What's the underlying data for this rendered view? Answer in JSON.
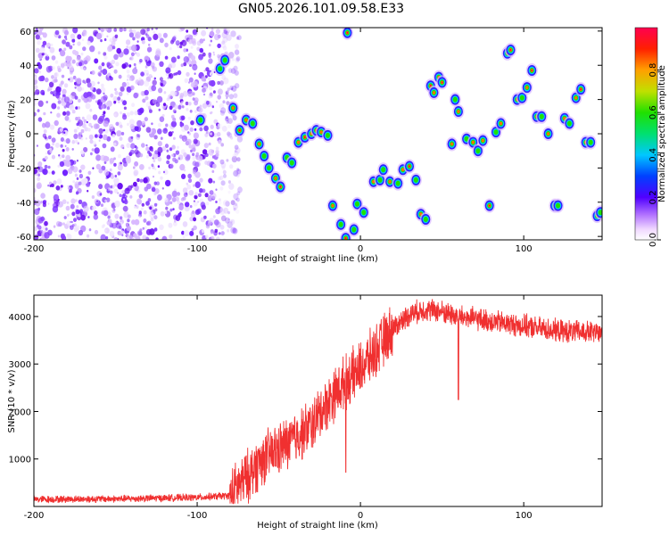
{
  "title": "GN05.2026.101.09.58.E33",
  "chart_data": [
    {
      "type": "heatmap",
      "name": "spectrogram",
      "xlabel": "Height of straight line (km)",
      "ylabel": "Frequency (Hz)",
      "xlim": [
        -200,
        148
      ],
      "ylim": [
        -62,
        62
      ],
      "xticks": [
        -200,
        -100,
        0,
        100
      ],
      "yticks": [
        -60,
        -40,
        -20,
        0,
        20,
        40,
        60
      ],
      "colorbar": {
        "label": "Normalized spectral amplitude",
        "range": [
          0,
          1
        ],
        "ticks": [
          0.0,
          0.2,
          0.4,
          0.6,
          0.8
        ]
      },
      "noise_region": {
        "x_from": -200,
        "x_to": -78,
        "y_from": -62,
        "y_to": 62
      },
      "blobs": [
        {
          "x": -98,
          "y": 8,
          "a": 0.35
        },
        {
          "x": -86,
          "y": 38,
          "a": 0.45
        },
        {
          "x": -83,
          "y": 43,
          "a": 0.5
        },
        {
          "x": -78,
          "y": 15,
          "a": 0.55
        },
        {
          "x": -74,
          "y": 2,
          "a": 0.6
        },
        {
          "x": -70,
          "y": 8,
          "a": 0.55
        },
        {
          "x": -66,
          "y": 6,
          "a": 0.5
        },
        {
          "x": -62,
          "y": -6,
          "a": 0.55
        },
        {
          "x": -59,
          "y": -13,
          "a": 0.45
        },
        {
          "x": -56,
          "y": -20,
          "a": 0.5
        },
        {
          "x": -52,
          "y": -26,
          "a": 0.55
        },
        {
          "x": -49,
          "y": -31,
          "a": 0.6
        },
        {
          "x": -45,
          "y": -14,
          "a": 0.45
        },
        {
          "x": -42,
          "y": -17,
          "a": 0.5
        },
        {
          "x": -38,
          "y": -5,
          "a": 0.55
        },
        {
          "x": -34,
          "y": -2,
          "a": 0.6
        },
        {
          "x": -30,
          "y": 0,
          "a": 0.55
        },
        {
          "x": -27,
          "y": 2,
          "a": 0.65
        },
        {
          "x": -24,
          "y": 1,
          "a": 0.55
        },
        {
          "x": -20,
          "y": -1,
          "a": 0.5
        },
        {
          "x": -17,
          "y": -42,
          "a": 0.55
        },
        {
          "x": -12,
          "y": -53,
          "a": 0.5
        },
        {
          "x": -9,
          "y": -61,
          "a": 0.6
        },
        {
          "x": -8,
          "y": 59,
          "a": 0.7
        },
        {
          "x": -4,
          "y": -56,
          "a": 0.5
        },
        {
          "x": -2,
          "y": -41,
          "a": 0.45
        },
        {
          "x": 2,
          "y": -46,
          "a": 0.5
        },
        {
          "x": 8,
          "y": -28,
          "a": 0.55
        },
        {
          "x": 12,
          "y": -27,
          "a": 0.5
        },
        {
          "x": 14,
          "y": -21,
          "a": 0.45
        },
        {
          "x": 18,
          "y": -28,
          "a": 0.55
        },
        {
          "x": 23,
          "y": -29,
          "a": 0.5
        },
        {
          "x": 26,
          "y": -21,
          "a": 0.55
        },
        {
          "x": 30,
          "y": -19,
          "a": 0.6
        },
        {
          "x": 34,
          "y": -27,
          "a": 0.5
        },
        {
          "x": 37,
          "y": -47,
          "a": 0.55
        },
        {
          "x": 40,
          "y": -50,
          "a": 0.5
        },
        {
          "x": 43,
          "y": 28,
          "a": 0.6
        },
        {
          "x": 45,
          "y": 24,
          "a": 0.55
        },
        {
          "x": 48,
          "y": 33,
          "a": 0.65
        },
        {
          "x": 50,
          "y": 30,
          "a": 0.6
        },
        {
          "x": 56,
          "y": -6,
          "a": 0.55
        },
        {
          "x": 58,
          "y": 20,
          "a": 0.5
        },
        {
          "x": 60,
          "y": 13,
          "a": 0.55
        },
        {
          "x": 65,
          "y": -3,
          "a": 0.5
        },
        {
          "x": 69,
          "y": -5,
          "a": 0.55
        },
        {
          "x": 72,
          "y": -10,
          "a": 0.5
        },
        {
          "x": 75,
          "y": -4,
          "a": 0.55
        },
        {
          "x": 79,
          "y": -42,
          "a": 0.6
        },
        {
          "x": 83,
          "y": 1,
          "a": 0.5
        },
        {
          "x": 86,
          "y": 6,
          "a": 0.55
        },
        {
          "x": 90,
          "y": 47,
          "a": 0.6
        },
        {
          "x": 92,
          "y": 49,
          "a": 0.65
        },
        {
          "x": 96,
          "y": 20,
          "a": 0.55
        },
        {
          "x": 99,
          "y": 21,
          "a": 0.5
        },
        {
          "x": 102,
          "y": 27,
          "a": 0.55
        },
        {
          "x": 105,
          "y": 37,
          "a": 0.6
        },
        {
          "x": 108,
          "y": 10,
          "a": 0.55
        },
        {
          "x": 111,
          "y": 10,
          "a": 0.5
        },
        {
          "x": 115,
          "y": 0,
          "a": 0.55
        },
        {
          "x": 119,
          "y": -42,
          "a": 0.55
        },
        {
          "x": 121,
          "y": -42,
          "a": 0.5
        },
        {
          "x": 125,
          "y": 9,
          "a": 0.55
        },
        {
          "x": 128,
          "y": 6,
          "a": 0.5
        },
        {
          "x": 132,
          "y": 21,
          "a": 0.55
        },
        {
          "x": 135,
          "y": 26,
          "a": 0.6
        },
        {
          "x": 138,
          "y": -5,
          "a": 0.55
        },
        {
          "x": 141,
          "y": -5,
          "a": 0.5
        },
        {
          "x": 145,
          "y": -48,
          "a": 0.55
        },
        {
          "x": 147,
          "y": -46,
          "a": 0.5
        }
      ]
    },
    {
      "type": "line",
      "name": "snr",
      "xlabel": "Height of straight line (km)",
      "ylabel": "SNR (10 * v/v)",
      "xlim": [
        -200,
        148
      ],
      "ylim": [
        0,
        4450
      ],
      "xticks": [
        -200,
        -100,
        0,
        100
      ],
      "yticks": [
        1000,
        2000,
        3000,
        4000
      ],
      "color": "#f03030",
      "envelope": {
        "x": [
          -200,
          -150,
          -100,
          -80,
          -70,
          -60,
          -50,
          -40,
          -30,
          -20,
          -10,
          0,
          10,
          20,
          30,
          40,
          50,
          60,
          80,
          100,
          120,
          148
        ],
        "y": [
          150,
          160,
          190,
          230,
          600,
          1000,
          1200,
          1450,
          1700,
          2200,
          2600,
          2900,
          3300,
          3750,
          4050,
          4150,
          4100,
          4000,
          3900,
          3800,
          3700,
          3650
        ]
      },
      "spikes": [
        {
          "x": 60,
          "y": 2250
        },
        {
          "x": -9,
          "y": 720
        }
      ]
    }
  ]
}
